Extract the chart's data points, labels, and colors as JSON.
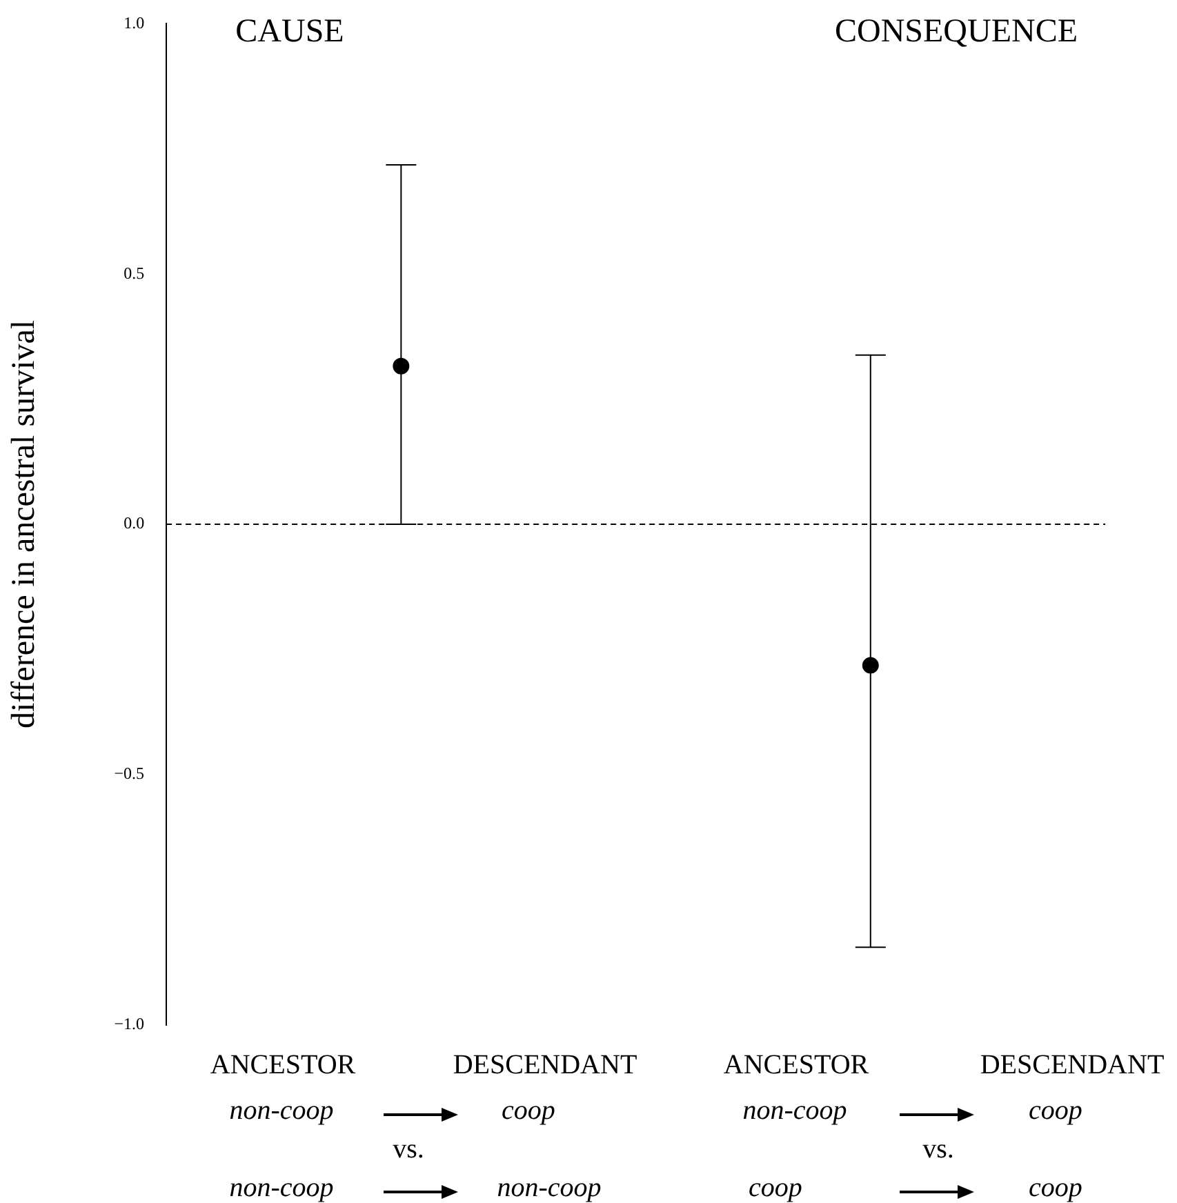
{
  "chart_data": {
    "type": "scatter",
    "ylabel": "difference in ancestral survival",
    "categories": [
      null,
      null
    ],
    "values": [
      0.316,
      -0.282
    ],
    "errors": [
      [
        0.0,
        0.718
      ],
      [
        -0.845,
        0.338
      ]
    ],
    "color": "#000000",
    "marker": "circle",
    "tick_labels": "y",
    "grid": false,
    "legend": false,
    "ylim": [
      -1.0,
      1.0
    ],
    "yticks": [
      {
        "value": -1.0,
        "label": "−1.0"
      },
      {
        "value": -0.5,
        "label": "−0.5"
      },
      {
        "value": 0,
        "label": "0.0"
      },
      0.5,
      {
        "value": 1,
        "label": "1.0"
      }
    ],
    "ref_lines": [
      {
        "axis": "y",
        "value": 0.0,
        "line_style": "dashed",
        "color": "#000000"
      }
    ],
    "annotations": [
      "CAUSE",
      "CONSEQUENCE",
      "ANCESTOR",
      "DESCENDANT",
      "non-coop",
      "coop",
      "vs.",
      "non-coop",
      "non-coop",
      "ANCESTOR",
      "DESCENDANT",
      "non-coop",
      "coop",
      "vs.",
      "coop",
      "coop"
    ]
  }
}
